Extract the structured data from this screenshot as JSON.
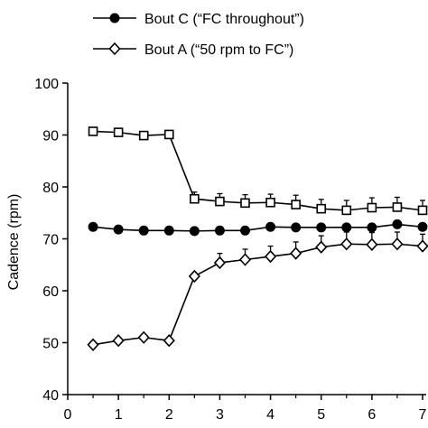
{
  "chart_data": {
    "type": "line",
    "title": "",
    "xlabel": "",
    "ylabel": "Cadence (rpm)",
    "xlim": [
      0,
      7
    ],
    "ylim": [
      40,
      100
    ],
    "x_ticks": [
      "0",
      "1",
      "2",
      "3",
      "4",
      "5",
      "6",
      "7"
    ],
    "y_ticks": [
      "40",
      "50",
      "60",
      "70",
      "80",
      "90",
      "100"
    ],
    "grid": false,
    "legend_position": "top",
    "x": [
      0.5,
      1.0,
      1.5,
      2.0,
      2.5,
      3.0,
      3.5,
      4.0,
      4.5,
      5.0,
      5.5,
      6.0,
      6.5,
      7.0
    ],
    "series": [
      {
        "name": "Bout C (“FC throughout”)",
        "marker": "filled-circle",
        "values": [
          72.3,
          71.8,
          71.6,
          71.6,
          71.5,
          71.6,
          71.6,
          72.3,
          72.2,
          72.2,
          72.2,
          72.2,
          72.8,
          72.3
        ],
        "error": [
          0,
          0,
          0,
          0,
          0,
          0,
          0,
          0.5,
          0.5,
          0.5,
          0.5,
          0.5,
          0.5,
          0.5
        ]
      },
      {
        "name": "Bout A (“50 rpm to FC”)",
        "marker": "open-diamond",
        "values": [
          49.6,
          50.4,
          51.0,
          50.4,
          62.8,
          65.4,
          66.0,
          66.6,
          67.2,
          68.4,
          69.0,
          68.9,
          69.0,
          68.6
        ],
        "error": [
          0,
          0,
          0,
          0,
          0,
          1.8,
          2.0,
          2.0,
          2.2,
          2.2,
          2.3,
          2.3,
          2.3,
          2.3
        ]
      },
      {
        "name": "",
        "marker": "open-square",
        "values": [
          90.7,
          90.5,
          89.9,
          90.1,
          77.7,
          77.2,
          76.9,
          77.0,
          76.6,
          75.8,
          75.5,
          76.0,
          76.1,
          75.5
        ],
        "error": [
          0,
          0,
          0,
          0,
          1.3,
          1.5,
          1.6,
          1.6,
          1.8,
          1.8,
          1.9,
          1.9,
          1.9,
          1.9
        ]
      }
    ]
  }
}
